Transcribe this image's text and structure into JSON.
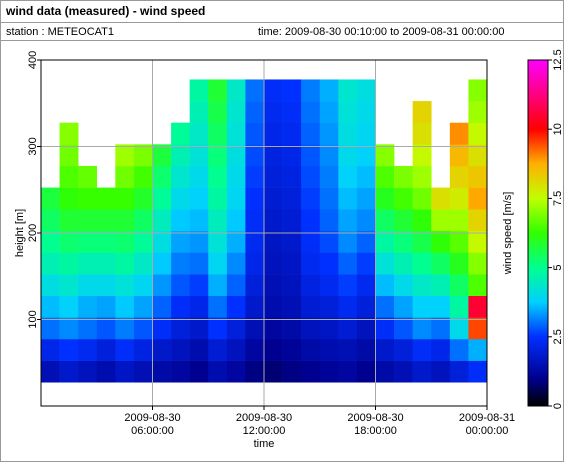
{
  "chart_data": {
    "type": "heatmap",
    "title": "wind data (measured) - wind speed",
    "station": "station : METEOCAT1",
    "period": "time: 2009-08-30 00:10:00 to 2009-08-31 00:00:00",
    "x_label": "time",
    "y_label": "height [m]",
    "colorbar_label": "wind speed [m/s]",
    "x": [
      0.5,
      1.5,
      2.5,
      3.5,
      4.5,
      5.5,
      6.5,
      7.5,
      8.5,
      9.5,
      10.5,
      11.5,
      12.5,
      13.5,
      14.5,
      15.5,
      16.5,
      17.5,
      18.5,
      19.5,
      20.5,
      21.5,
      22.5,
      23.5
    ],
    "y": [
      40,
      65,
      90,
      115,
      140,
      165,
      190,
      215,
      240,
      265,
      290,
      315,
      340,
      365
    ],
    "z": [
      [
        1.5,
        1.8,
        1.6,
        1.4,
        1.7,
        1.5,
        1.3,
        1.2,
        1.0,
        1.4,
        1.2,
        0.9,
        0.8,
        0.9,
        1.0,
        1.1,
        1.2,
        1.0,
        1.3,
        1.5,
        1.8,
        1.6,
        2.0,
        2.4
      ],
      [
        2.2,
        2.5,
        2.3,
        2.0,
        2.4,
        2.1,
        1.8,
        1.6,
        1.4,
        1.9,
        1.6,
        1.2,
        1.0,
        1.1,
        1.3,
        1.4,
        1.5,
        1.3,
        1.8,
        2.0,
        2.4,
        2.2,
        3.0,
        3.5
      ],
      [
        3.0,
        3.2,
        3.0,
        2.8,
        3.1,
        2.8,
        2.4,
        2.0,
        1.8,
        2.5,
        2.0,
        1.5,
        1.2,
        1.3,
        1.6,
        1.7,
        1.9,
        1.6,
        2.4,
        2.8,
        3.2,
        3.0,
        4.0,
        9.5
      ],
      [
        3.6,
        3.8,
        3.5,
        3.4,
        3.7,
        3.4,
        2.9,
        2.4,
        2.2,
        3.0,
        2.5,
        1.8,
        1.4,
        1.5,
        1.9,
        2.0,
        2.3,
        2.0,
        3.0,
        3.4,
        3.8,
        3.8,
        4.8,
        10.5
      ],
      [
        4.1,
        4.3,
        4.0,
        4.0,
        4.2,
        3.9,
        3.3,
        2.8,
        2.6,
        3.5,
        2.9,
        2.0,
        1.5,
        1.6,
        2.1,
        2.3,
        2.6,
        2.3,
        3.6,
        4.0,
        4.4,
        4.6,
        5.4,
        6.5
      ],
      [
        4.6,
        4.8,
        4.6,
        4.6,
        4.8,
        4.4,
        3.7,
        3.1,
        3.0,
        3.9,
        3.2,
        2.2,
        1.6,
        1.7,
        2.3,
        2.5,
        2.9,
        2.6,
        4.2,
        4.6,
        5.0,
        5.4,
        6.0,
        7.0
      ],
      [
        5.0,
        5.3,
        5.2,
        5.2,
        5.3,
        4.9,
        4.1,
        3.4,
        3.3,
        4.2,
        3.5,
        2.3,
        1.7,
        1.8,
        2.4,
        2.7,
        3.2,
        2.9,
        4.8,
        5.2,
        5.6,
        6.2,
        6.6,
        7.6
      ],
      [
        5.4,
        5.8,
        5.8,
        5.8,
        5.8,
        5.4,
        4.5,
        3.7,
        3.6,
        4.5,
        3.7,
        2.4,
        1.8,
        1.9,
        2.5,
        2.9,
        3.4,
        3.2,
        5.4,
        5.8,
        6.2,
        7.2,
        7.2,
        8.2
      ],
      [
        5.7,
        6.2,
        6.3,
        6.3,
        6.3,
        5.9,
        4.9,
        4.0,
        3.8,
        4.8,
        3.9,
        2.5,
        1.9,
        2.0,
        2.6,
        3.0,
        3.6,
        3.4,
        6.0,
        6.4,
        6.8,
        8.0,
        7.8,
        8.8
      ],
      [
        null,
        6.5,
        6.7,
        null,
        6.8,
        6.4,
        5.3,
        4.3,
        4.0,
        5.0,
        4.0,
        2.6,
        2.0,
        2.1,
        2.7,
        3.1,
        3.8,
        3.6,
        6.5,
        6.9,
        7.2,
        null,
        8.2,
        8.4
      ],
      [
        null,
        6.8,
        null,
        null,
        7.2,
        6.9,
        5.7,
        4.6,
        4.2,
        5.2,
        4.1,
        2.7,
        2.1,
        2.2,
        2.8,
        3.2,
        4.0,
        3.8,
        7.0,
        null,
        7.6,
        null,
        8.6,
        8.0
      ],
      [
        null,
        7.0,
        null,
        null,
        null,
        null,
        null,
        4.9,
        4.4,
        5.4,
        4.2,
        2.8,
        2.2,
        2.3,
        2.9,
        3.3,
        4.1,
        3.9,
        null,
        null,
        8.0,
        null,
        9.0,
        7.6
      ],
      [
        null,
        null,
        null,
        null,
        null,
        null,
        null,
        null,
        4.6,
        5.6,
        4.3,
        2.9,
        2.3,
        2.4,
        3.0,
        3.4,
        4.2,
        4.0,
        null,
        null,
        8.2,
        null,
        null,
        7.2
      ],
      [
        null,
        null,
        null,
        null,
        null,
        null,
        null,
        null,
        4.8,
        5.8,
        4.4,
        3.0,
        2.4,
        2.5,
        3.1,
        3.5,
        4.3,
        4.1,
        null,
        null,
        null,
        null,
        null,
        7.0
      ]
    ],
    "xlim": [
      0,
      24
    ],
    "xticks": [
      {
        "value": 6,
        "label": "2009-08-30\n06:00:00"
      },
      {
        "value": 12,
        "label": "2009-08-30\n12:00:00"
      },
      {
        "value": 18,
        "label": "2009-08-30\n18:00:00"
      },
      {
        "value": 24,
        "label": "2009-08-31\n00:00:00"
      }
    ],
    "ylim": [
      0,
      400
    ],
    "yticks": [
      100,
      200,
      300,
      400
    ],
    "clim": [
      0,
      12.5
    ],
    "cticks": [
      0,
      2.5,
      5,
      7.5,
      10,
      12.5
    ],
    "colormap": [
      [
        0,
        "#000000"
      ],
      [
        1,
        "#000090"
      ],
      [
        2.5,
        "#0030ff"
      ],
      [
        3.75,
        "#00d0ff"
      ],
      [
        5,
        "#00ff90"
      ],
      [
        6.25,
        "#30ff00"
      ],
      [
        7.5,
        "#c0ff00"
      ],
      [
        8.75,
        "#ffb000"
      ],
      [
        10,
        "#ff0000"
      ],
      [
        12.5,
        "#ff00ff"
      ]
    ],
    "grid": true
  }
}
